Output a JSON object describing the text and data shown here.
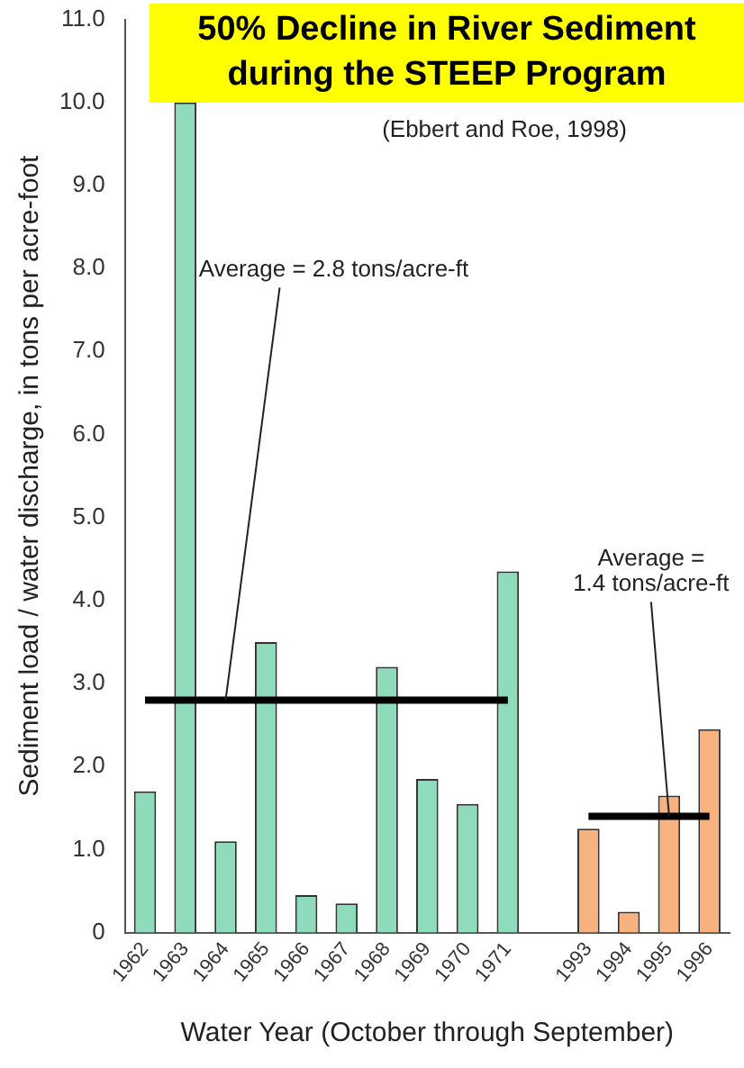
{
  "chart_data": {
    "type": "bar",
    "title": "50% Decline in  River Sediment during the STEEP Program",
    "subtitle": "(Ebbert and Roe, 1998)",
    "xlabel": "Water Year (October through September)",
    "ylabel": "Sediment load / water discharge, in tons per acre-foot",
    "categories": [
      "1962",
      "1963",
      "1964",
      "1965",
      "1966",
      "1967",
      "1968",
      "1969",
      "1970",
      "1971",
      null,
      "1993",
      "1994",
      "1995",
      "1996"
    ],
    "series": [
      {
        "values": [
          1.7,
          10.0,
          1.1,
          3.5,
          0.45,
          0.35,
          3.2,
          1.85,
          1.55,
          4.35,
          null,
          1.25,
          0.25,
          1.65,
          2.45
        ],
        "colors": [
          "#8fdcbc",
          "#8fdcbc",
          "#8fdcbc",
          "#8fdcbc",
          "#8fdcbc",
          "#8fdcbc",
          "#8fdcbc",
          "#8fdcbc",
          "#8fdcbc",
          "#8fdcbc",
          null,
          "#f7b27f",
          "#f7b27f",
          "#f7b27f",
          "#f7b27f"
        ]
      },
      {
        "type": "line",
        "color": "#000000",
        "values": [
          2.8,
          2.8,
          2.8,
          2.8,
          2.8,
          2.8,
          2.8,
          2.8,
          2.8,
          2.8,
          null,
          null,
          null,
          null,
          null
        ]
      },
      {
        "type": "line",
        "color": "#000000",
        "values": [
          null,
          null,
          null,
          null,
          null,
          null,
          null,
          null,
          null,
          null,
          null,
          1.4,
          1.4,
          1.4,
          1.4
        ]
      }
    ],
    "ylim": [
      0,
      11
    ],
    "yticks": [
      {
        "value": 0,
        "label": "0"
      },
      {
        "value": 1,
        "label": "1.0"
      },
      {
        "value": 2,
        "label": "2.0"
      },
      {
        "value": 3,
        "label": "3.0"
      },
      {
        "value": 4,
        "label": "4.0"
      },
      {
        "value": 5,
        "label": "5.0"
      },
      {
        "value": 6,
        "label": "6.0"
      },
      {
        "value": 7,
        "label": "7.0"
      },
      {
        "value": 8,
        "label": "8.0"
      },
      {
        "value": 9,
        "label": "9.0"
      },
      {
        "value": 10,
        "label": "10.0"
      },
      {
        "value": 11,
        "label": "11.0"
      }
    ],
    "annotations": [
      {
        "text": "Average = 2.8 tons/acre-ft",
        "x": "1964",
        "y": 2.8
      },
      {
        "text": "Average =\n1.4 tons/acre-ft",
        "x": "1995",
        "y": 1.4
      }
    ],
    "grid": false,
    "legend": false
  }
}
